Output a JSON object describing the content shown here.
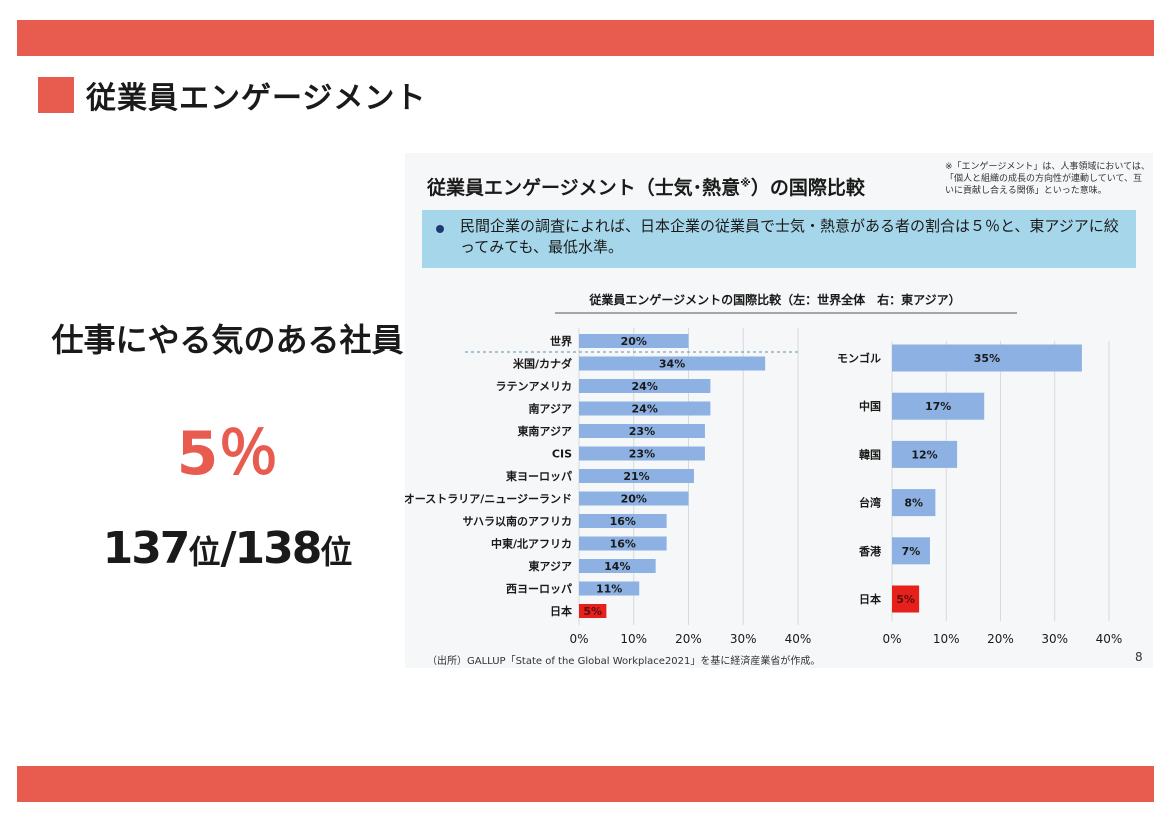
{
  "page": {
    "heading": "従業員エンゲージメント",
    "left_label": "仕事にやる気のある社員",
    "big_percent": "5％",
    "rank_a": "137",
    "rank_unit_a": "位",
    "rank_sep": "/",
    "rank_b": "138",
    "rank_unit_b": "位"
  },
  "slide": {
    "title_main": "従業員エンゲージメント（士気･熱意",
    "title_mark": "※",
    "title_end": "）の国際比較",
    "note": "※「エンゲージメント」は、人事領域においては、「個人と組織の成長の方向性が連動していて、互いに貢献し合える関係」といった意味。",
    "info": "民間企業の調査によれば、日本企業の従業員で士気・熱意がある者の割合は５％と、東アジアに絞ってみても、最低水準。",
    "source": "（出所）GALLUP「State of the Global Workplace2021」を基に経済産業省が作成。",
    "page_number": "8"
  },
  "colors": {
    "accent": "#e85c4f",
    "bar": "#8db1e3",
    "highlight": "#e8201c",
    "info_bg": "#a6d6ea"
  },
  "chart_data": [
    {
      "type": "bar",
      "orientation": "horizontal",
      "title": "従業員エンゲージメントの国際比較（左：世界全体　右：東アジア）",
      "categories": [
        "世界",
        "米国/カナダ",
        "ラテンアメリカ",
        "南アジア",
        "東南アジア",
        "CIS",
        "東ヨーロッパ",
        "オーストラリア/ニュージーランド",
        "サハラ以南のアフリカ",
        "中東/北アフリカ",
        "東アジア",
        "西ヨーロッパ",
        "日本"
      ],
      "values": [
        20,
        34,
        24,
        24,
        23,
        23,
        21,
        20,
        16,
        16,
        14,
        11,
        5
      ],
      "value_labels": [
        "20%",
        "34%",
        "24%",
        "24%",
        "23%",
        "23%",
        "21%",
        "20%",
        "16%",
        "16%",
        "14%",
        "11%",
        "5%"
      ],
      "highlight": "日本",
      "xlim": [
        0,
        40
      ],
      "xticks": [
        "0%",
        "10%",
        "20%",
        "30%",
        "40%"
      ]
    },
    {
      "type": "bar",
      "orientation": "horizontal",
      "categories": [
        "モンゴル",
        "中国",
        "韓国",
        "台湾",
        "香港",
        "日本"
      ],
      "values": [
        35,
        17,
        12,
        8,
        7,
        5
      ],
      "value_labels": [
        "35%",
        "17%",
        "12%",
        "8%",
        "7%",
        "5%"
      ],
      "highlight": "日本",
      "xlim": [
        0,
        40
      ],
      "xticks": [
        "0%",
        "10%",
        "20%",
        "30%",
        "40%"
      ]
    }
  ]
}
